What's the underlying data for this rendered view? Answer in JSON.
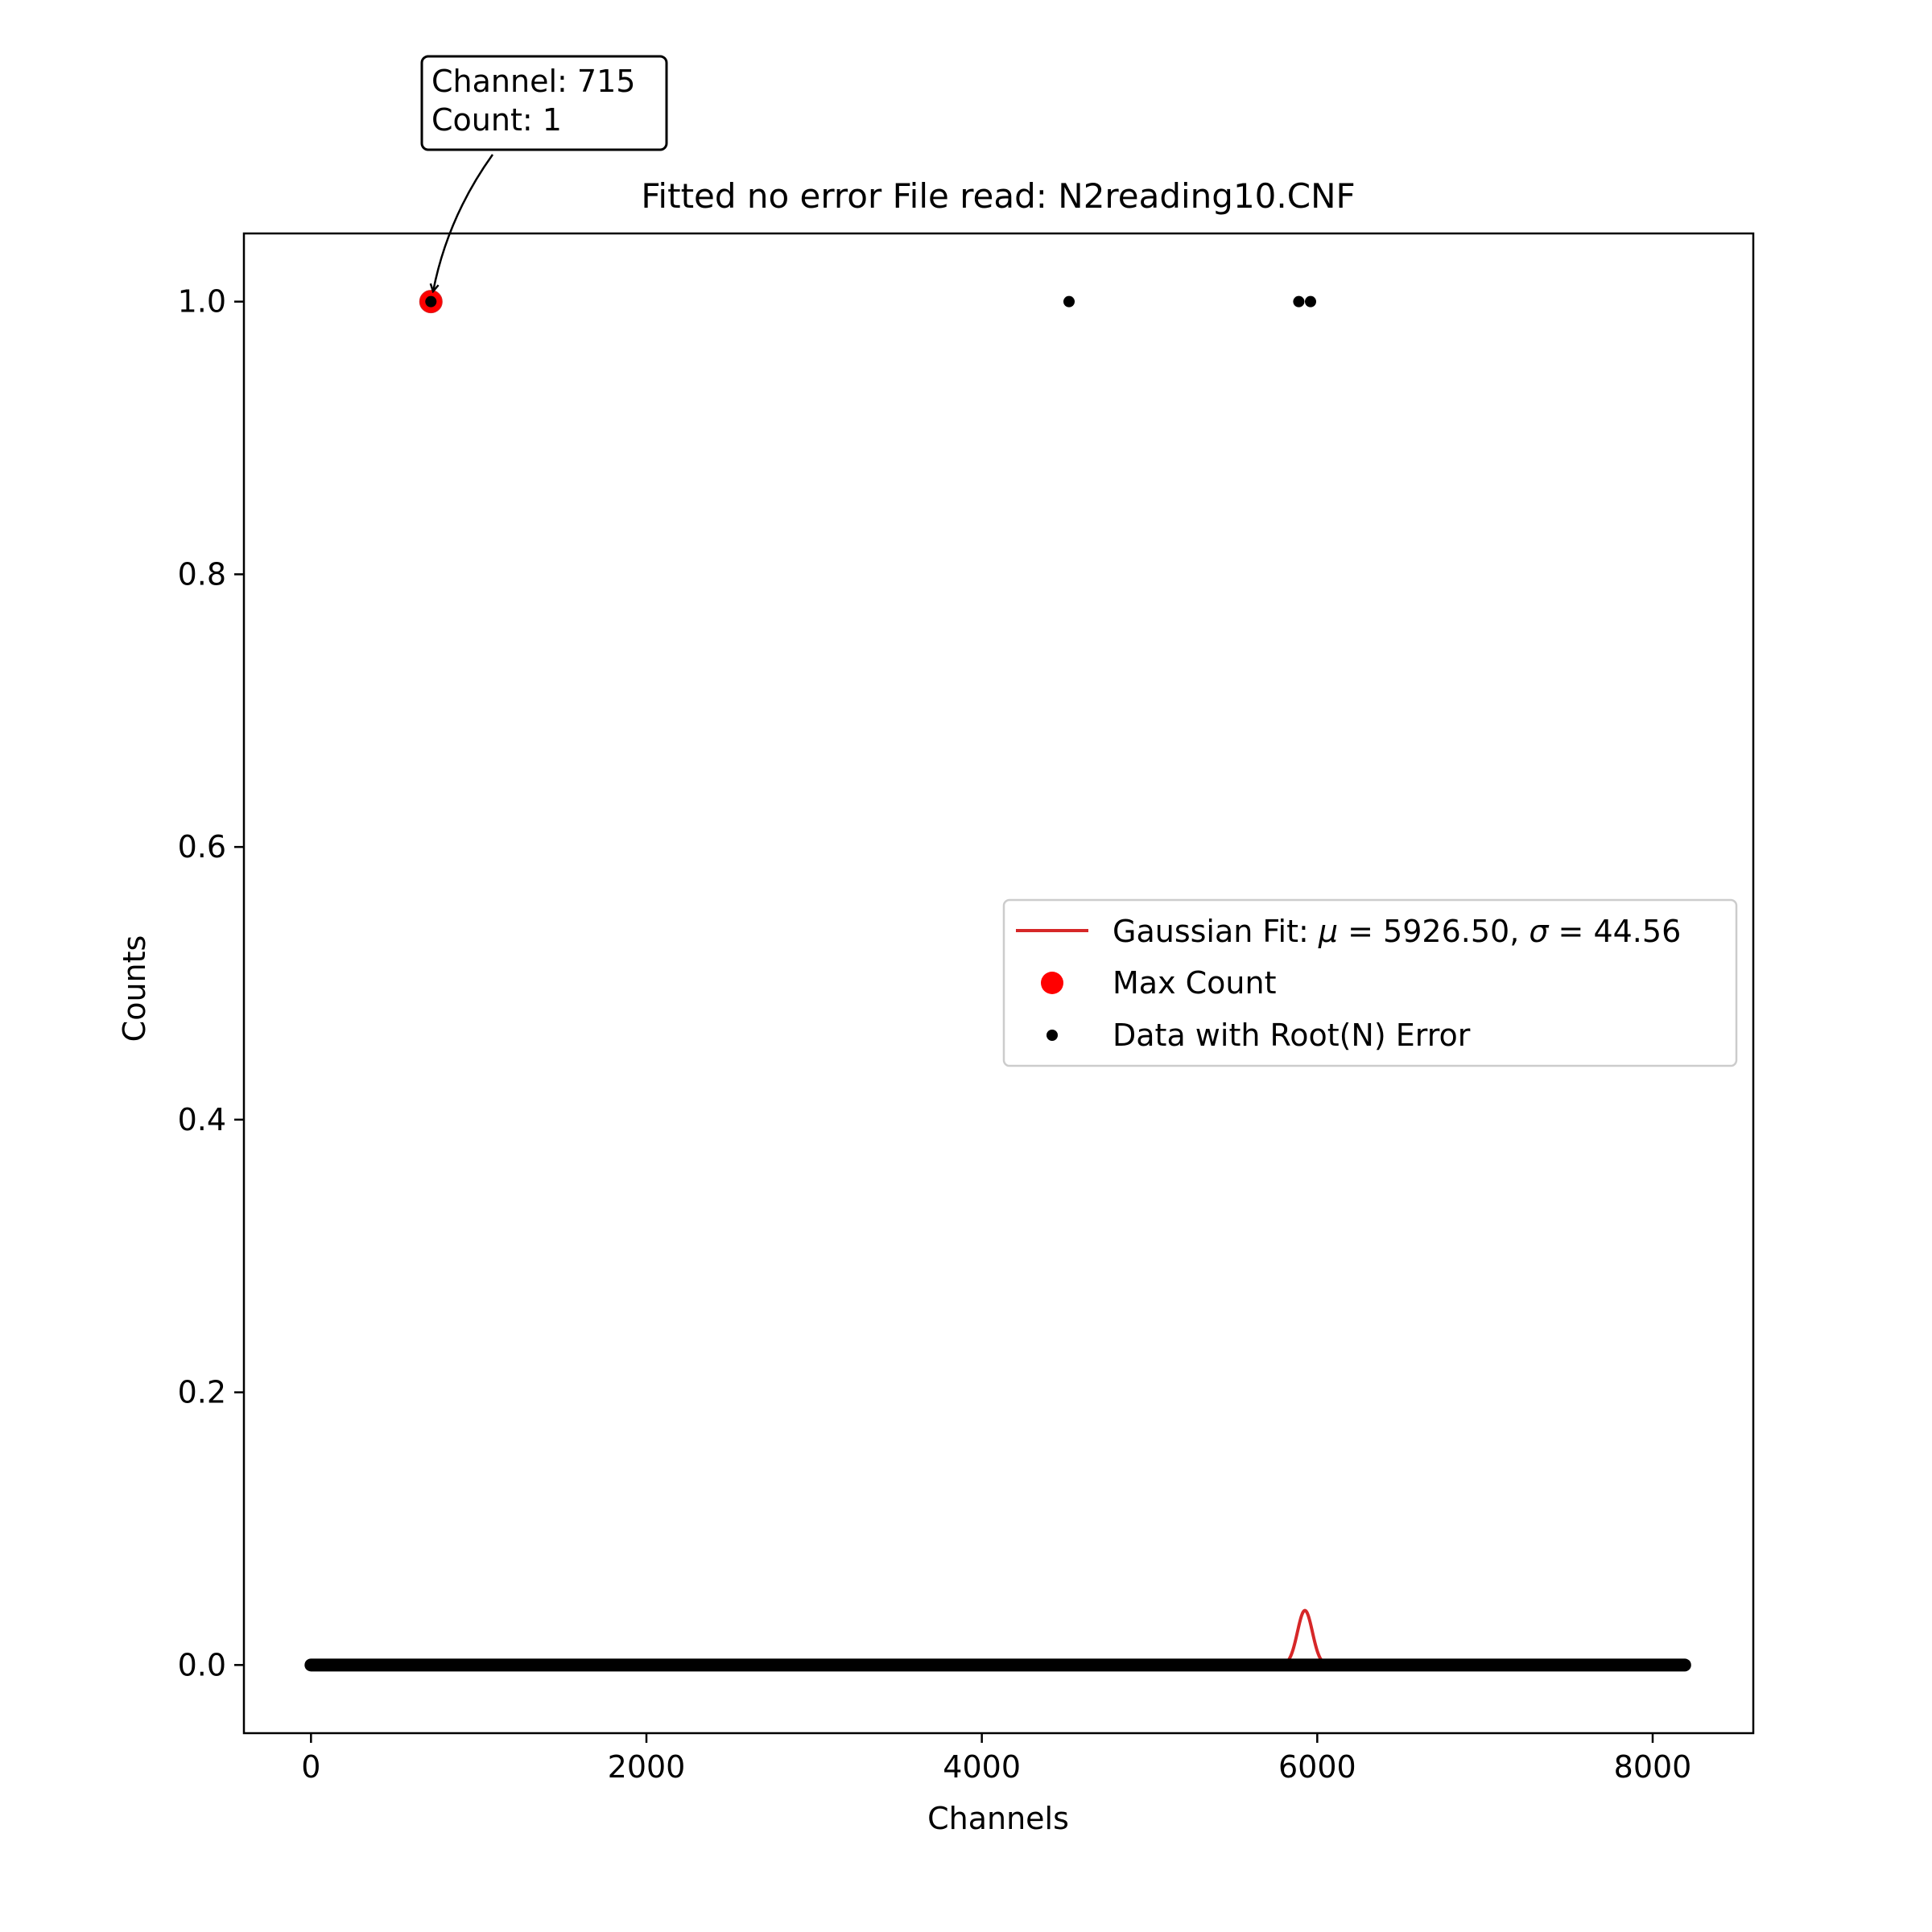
{
  "chart_data": {
    "type": "scatter",
    "title": "Fitted no error File read: N2reading10.CNF",
    "xlabel": "Channels",
    "ylabel": "Counts",
    "xlim": [
      -400,
      8600
    ],
    "ylim": [
      -0.05,
      1.05
    ],
    "xticks": [
      0,
      2000,
      4000,
      6000,
      8000
    ],
    "xtick_labels": [
      "0",
      "2000",
      "4000",
      "6000",
      "8000"
    ],
    "yticks": [
      0.0,
      0.2,
      0.4,
      0.6,
      0.8,
      1.0
    ],
    "ytick_labels": [
      "0.0",
      "0.2",
      "0.4",
      "0.6",
      "0.8",
      "1.0"
    ],
    "grid": false,
    "legend_position": "center-right",
    "legend": {
      "gaussian_prefix": "Gaussian Fit: ",
      "mu_symbol": "μ",
      "mu_value": "5926.50",
      "sigma_symbol": "σ",
      "sigma_value": "44.56",
      "max_label": "Max Count",
      "data_label": "Data with Root(N) Error"
    },
    "annotation": {
      "line1": "Channel: 715",
      "line2": "Count: 1",
      "x": 715,
      "y": 1
    },
    "series": [
      {
        "name": "Data with Root(N) Error",
        "marker": "dot",
        "color": "#000000",
        "baseline": {
          "x_start": 0,
          "x_end": 8191,
          "y": 0
        },
        "points": [
          {
            "x": 715,
            "y": 1
          },
          {
            "x": 4520,
            "y": 1
          },
          {
            "x": 5890,
            "y": 1
          },
          {
            "x": 5960,
            "y": 1
          }
        ]
      },
      {
        "name": "Max Count",
        "marker": "circle",
        "color": "#e41a1c",
        "points": [
          {
            "x": 715,
            "y": 1
          }
        ]
      },
      {
        "name": "Gaussian Fit",
        "type": "line",
        "color": "#d62728",
        "mu": 5926.5,
        "sigma": 44.56,
        "amplitude": 0.04,
        "offset": 0
      }
    ]
  }
}
